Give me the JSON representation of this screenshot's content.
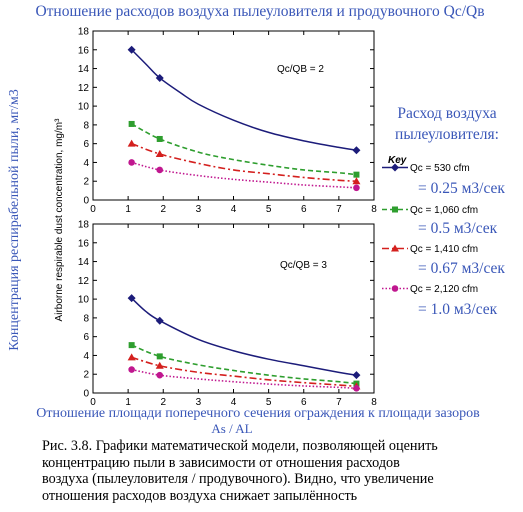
{
  "header_title": "Отношение расходов воздуха пылеуловителя и продувочного Qc/Qв",
  "y_label_ru": "Концентрация респирабельной пыли, мг/м3",
  "y_label_en": "Airborne respirable dust concentration, mg/m³",
  "x_label_ru_line1": "Отношение площади поперечного сечения ограждения к площади зазоров",
  "x_label_ru_line2": "As / AL",
  "legend_header_ru_line1": "Расход воздуха",
  "legend_header_ru_line2": "пылеуловителя:",
  "legend_key_label": "Key",
  "legend": [
    {
      "label": "Qc = 530 cfm",
      "ru": "= 0.25 м3/сек",
      "color": "#1c1c7a",
      "marker": "diamond",
      "dash": ""
    },
    {
      "label": "Qc = 1,060 cfm",
      "ru": "= 0.5 м3/сек",
      "color": "#2e9e2e",
      "marker": "square",
      "dash": "5,3"
    },
    {
      "label": "Qc = 1,410 cfm",
      "ru": "= 0.67 м3/сек",
      "color": "#d4201e",
      "marker": "triangle",
      "dash": "7,3,2,3"
    },
    {
      "label": "Qc = 2,120 cfm",
      "ru": "= 1.0 м3/сек",
      "color": "#c0178f",
      "marker": "circle",
      "dash": "1.5,2"
    }
  ],
  "caption": [
    "Рис. 3.8. Графики математической модели, позволяющей оценить",
    "концентрацию пыли в зависимости от отношения расходов",
    "воздуха (пылеуловителя / продувочного). Видно, что увеличение",
    "отношения расходов воздуха снижает запылённость"
  ],
  "chart_data": [
    {
      "type": "line",
      "annotation": "Qc/QB = 2",
      "xlim": [
        0,
        8
      ],
      "ylim": [
        0,
        18
      ],
      "x_ticks": [
        0,
        1,
        2,
        3,
        4,
        5,
        6,
        7,
        8
      ],
      "y_ticks": [
        0,
        2,
        4,
        6,
        8,
        10,
        12,
        14,
        16,
        18
      ],
      "marker_x": [
        1.1,
        1.9,
        7.5
      ],
      "series": [
        {
          "name": "Qc = 530 cfm",
          "marker_y": [
            16,
            13,
            5.3
          ],
          "curve": [
            [
              1.1,
              16
            ],
            [
              1.5,
              14.5
            ],
            [
              1.9,
              13
            ],
            [
              2.5,
              11.4
            ],
            [
              3,
              10.2
            ],
            [
              4,
              8.5
            ],
            [
              5,
              7.2
            ],
            [
              6,
              6.3
            ],
            [
              7,
              5.6
            ],
            [
              7.5,
              5.3
            ]
          ]
        },
        {
          "name": "Qc = 1,060 cfm",
          "marker_y": [
            8.1,
            6.5,
            2.7
          ],
          "curve": [
            [
              1.1,
              8.1
            ],
            [
              1.9,
              6.5
            ],
            [
              3,
              5.1
            ],
            [
              4,
              4.3
            ],
            [
              5,
              3.7
            ],
            [
              6,
              3.2
            ],
            [
              7,
              2.9
            ],
            [
              7.5,
              2.7
            ]
          ]
        },
        {
          "name": "Qc = 1,410 cfm",
          "marker_y": [
            6,
            4.9,
            2
          ],
          "curve": [
            [
              1.1,
              6
            ],
            [
              1.9,
              4.9
            ],
            [
              3,
              3.9
            ],
            [
              4,
              3.2
            ],
            [
              5,
              2.8
            ],
            [
              6,
              2.4
            ],
            [
              7,
              2.1
            ],
            [
              7.5,
              2
            ]
          ]
        },
        {
          "name": "Qc = 2,120 cfm",
          "marker_y": [
            4,
            3.2,
            1.3
          ],
          "curve": [
            [
              1.1,
              4
            ],
            [
              1.9,
              3.2
            ],
            [
              3,
              2.6
            ],
            [
              4,
              2.2
            ],
            [
              5,
              1.9
            ],
            [
              6,
              1.6
            ],
            [
              7,
              1.4
            ],
            [
              7.5,
              1.3
            ]
          ]
        }
      ]
    },
    {
      "type": "line",
      "annotation": "Qc/QB = 3",
      "xlim": [
        0,
        8
      ],
      "ylim": [
        0,
        18
      ],
      "x_ticks": [
        0,
        1,
        2,
        3,
        4,
        5,
        6,
        7,
        8
      ],
      "y_ticks": [
        0,
        2,
        4,
        6,
        8,
        10,
        12,
        14,
        16,
        18
      ],
      "marker_x": [
        1.1,
        1.9,
        7.5
      ],
      "series": [
        {
          "name": "Qc = 530 cfm",
          "marker_y": [
            10.1,
            7.7,
            1.9
          ],
          "curve": [
            [
              1.1,
              10.1
            ],
            [
              1.5,
              8.7
            ],
            [
              1.9,
              7.7
            ],
            [
              3,
              5.7
            ],
            [
              4,
              4.5
            ],
            [
              5,
              3.6
            ],
            [
              6,
              2.9
            ],
            [
              7,
              2.2
            ],
            [
              7.5,
              1.9
            ]
          ]
        },
        {
          "name": "Qc = 1,060 cfm",
          "marker_y": [
            5.1,
            3.9,
            1
          ],
          "curve": [
            [
              1.1,
              5.1
            ],
            [
              1.9,
              3.9
            ],
            [
              3,
              3
            ],
            [
              4,
              2.4
            ],
            [
              5,
              1.9
            ],
            [
              6,
              1.5
            ],
            [
              7,
              1.2
            ],
            [
              7.5,
              1
            ]
          ]
        },
        {
          "name": "Qc = 1,410 cfm",
          "marker_y": [
            3.8,
            2.9,
            0.7
          ],
          "curve": [
            [
              1.1,
              3.8
            ],
            [
              1.9,
              2.9
            ],
            [
              3,
              2.2
            ],
            [
              4,
              1.8
            ],
            [
              5,
              1.4
            ],
            [
              6,
              1.1
            ],
            [
              7,
              0.85
            ],
            [
              7.5,
              0.7
            ]
          ]
        },
        {
          "name": "Qc = 2,120 cfm",
          "marker_y": [
            2.5,
            1.9,
            0.5
          ],
          "curve": [
            [
              1.1,
              2.5
            ],
            [
              1.9,
              1.9
            ],
            [
              3,
              1.5
            ],
            [
              4,
              1.2
            ],
            [
              5,
              0.95
            ],
            [
              6,
              0.75
            ],
            [
              7,
              0.6
            ],
            [
              7.5,
              0.5
            ]
          ]
        }
      ]
    }
  ]
}
